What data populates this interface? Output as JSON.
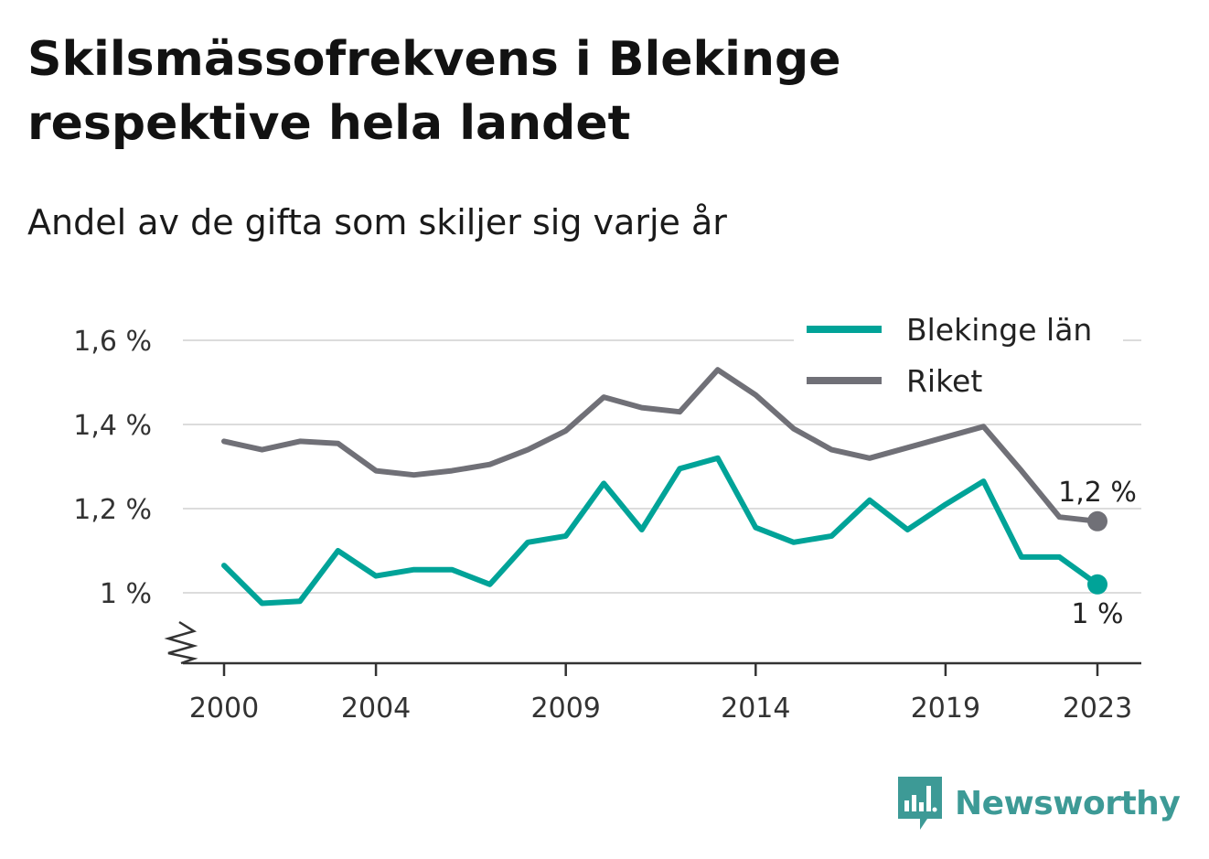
{
  "chart_data": {
    "type": "line",
    "title": "Skilsmässofrekvens i Blekinge respektive hela landet",
    "subtitle": "Andel av de gifta som skiljer sig varje år",
    "x": [
      2000,
      2001,
      2002,
      2003,
      2004,
      2005,
      2006,
      2007,
      2008,
      2009,
      2010,
      2011,
      2012,
      2013,
      2014,
      2015,
      2016,
      2017,
      2018,
      2019,
      2020,
      2021,
      2022,
      2023
    ],
    "x_ticks": [
      2000,
      2004,
      2009,
      2014,
      2019,
      2023
    ],
    "x_tick_labels": [
      "2000",
      "2004",
      "2009",
      "2014",
      "2019",
      "2023"
    ],
    "y_ticks": [
      1.0,
      1.2,
      1.4,
      1.6
    ],
    "y_tick_labels": [
      "1 %",
      "1,2 %",
      "1,4 %",
      "1,6 %"
    ],
    "ylim": [
      0.85,
      1.62
    ],
    "y_axis_break": true,
    "grid": true,
    "legend_position": "top-right",
    "series": [
      {
        "name": "Blekinge län",
        "color": "#00a398",
        "values": [
          1.065,
          0.975,
          0.98,
          1.1,
          1.04,
          1.055,
          1.055,
          1.02,
          1.12,
          1.135,
          1.26,
          1.15,
          1.295,
          1.32,
          1.155,
          1.12,
          1.135,
          1.22,
          1.15,
          1.21,
          1.265,
          1.085,
          1.085,
          1.02
        ],
        "end_label": "1 %"
      },
      {
        "name": "Riket",
        "color": "#707077",
        "values": [
          1.36,
          1.34,
          1.36,
          1.355,
          1.29,
          1.28,
          1.29,
          1.305,
          1.34,
          1.385,
          1.465,
          1.44,
          1.43,
          1.53,
          1.47,
          1.39,
          1.34,
          1.32,
          1.345,
          1.37,
          1.395,
          1.29,
          1.18,
          1.17
        ],
        "end_label": "1,2 %"
      }
    ]
  },
  "brand": {
    "name": "Newsworthy",
    "icon": "newsworthy-logo-icon",
    "color": "#3d9a96"
  }
}
